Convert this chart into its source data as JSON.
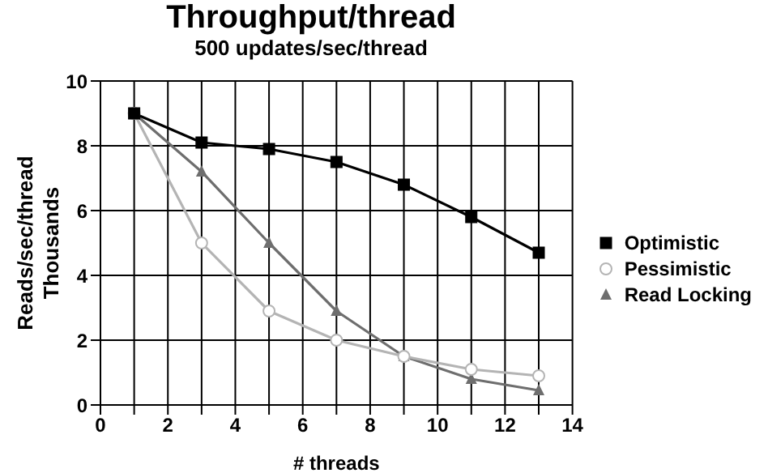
{
  "chart_data": {
    "type": "line",
    "title": "Throughput/thread",
    "subtitle": "500 updates/sec/thread",
    "xlabel": "# threads",
    "ylabel": "Reads/sec/thread\nThousands",
    "x": [
      1,
      3,
      5,
      7,
      9,
      11,
      13
    ],
    "series": [
      {
        "name": "Optimistic",
        "color": "#000000",
        "marker": "square",
        "values": [
          9,
          8.1,
          7.9,
          7.5,
          6.8,
          5.8,
          4.7
        ]
      },
      {
        "name": "Pessimistic",
        "color": "#b4b4b4",
        "marker": "circle",
        "values": [
          9,
          5,
          2.9,
          2.0,
          1.5,
          1.1,
          0.9
        ]
      },
      {
        "name": "Read Locking",
        "color": "#6e6e6e",
        "marker": "triangle",
        "values": [
          9,
          7.2,
          5.0,
          2.9,
          1.5,
          0.8,
          0.45
        ]
      }
    ],
    "xlim": [
      0,
      14
    ],
    "xticks": [
      0,
      {
        "value": 1,
        "label": null
      },
      2,
      {
        "value": 3,
        "label": null
      },
      4,
      {
        "value": 5,
        "label": null
      },
      6,
      {
        "value": 7,
        "label": null
      },
      8,
      {
        "value": 9,
        "label": null
      },
      10,
      {
        "value": 11,
        "label": null
      },
      12,
      {
        "value": 13,
        "label": null
      },
      14
    ],
    "ylim": [
      0,
      10
    ],
    "yticks": [
      0,
      2,
      4,
      6,
      8,
      10
    ],
    "grid": true,
    "legend": "right",
    "line_style": "solid"
  }
}
